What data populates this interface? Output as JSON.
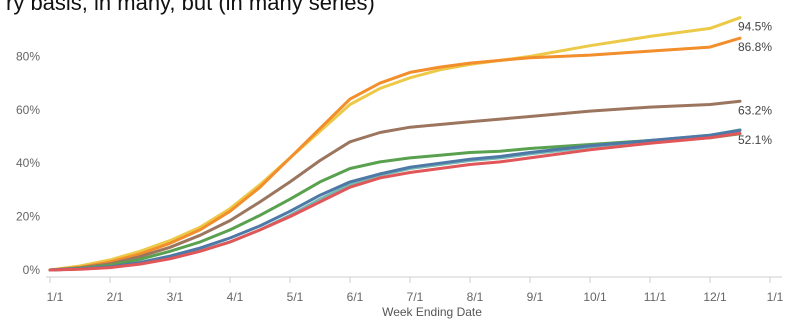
{
  "top_text": "ry basis, in many, but (in many series)",
  "chart_data": {
    "type": "line",
    "title": "",
    "xlabel": "Week Ending Date",
    "ylabel": "",
    "x_ticks": [
      "1/1",
      "2/1",
      "3/1",
      "4/1",
      "5/1",
      "6/1",
      "7/1",
      "8/1",
      "9/1",
      "10/1",
      "11/1",
      "12/1",
      "1/1"
    ],
    "x_domain": [
      0,
      12
    ],
    "ylim": [
      0,
      100
    ],
    "y_ticks": [
      {
        "value": 0,
        "label": "0%"
      },
      {
        "value": 20,
        "label": "20%"
      },
      {
        "value": 40,
        "label": "40%"
      },
      {
        "value": 60,
        "label": "60%"
      },
      {
        "value": 80,
        "label": "80%"
      }
    ],
    "grid": false,
    "end_labels": [
      {
        "text": "94.5%",
        "value": 94.5,
        "color": "#333333"
      },
      {
        "text": "86.8%",
        "value": 86.8,
        "color": "#333333"
      },
      {
        "text": "63.2%",
        "value": 63.2,
        "color": "#333333"
      },
      {
        "text": "52.1%",
        "value": 52.1,
        "color": "#333333"
      }
    ],
    "x": [
      0,
      0.5,
      1,
      1.5,
      2,
      2.5,
      3,
      3.5,
      4,
      4.5,
      5,
      5.5,
      6,
      6.5,
      7,
      7.5,
      8,
      9,
      10,
      11,
      11.5
    ],
    "series": [
      {
        "color": "#edc948",
        "values": [
          0,
          1.5,
          3.8,
          7,
          11,
          16,
          23,
          32,
          42,
          52,
          62,
          68,
          72,
          75,
          77,
          78.5,
          80,
          84,
          87.5,
          90.5,
          94.5
        ]
      },
      {
        "color": "#f28e2b",
        "values": [
          0,
          1,
          3,
          6,
          10,
          15,
          22,
          31,
          42,
          53,
          64,
          70,
          74,
          76,
          77.5,
          78.5,
          79.5,
          80.5,
          82,
          83.5,
          86.8
        ]
      },
      {
        "color": "#9c755f",
        "values": [
          0,
          0.8,
          2.3,
          5,
          8.5,
          13,
          18.5,
          25.5,
          33,
          41,
          48,
          51.5,
          53.5,
          54.5,
          55.5,
          56.5,
          57.5,
          59.5,
          61,
          62,
          63.2
        ]
      },
      {
        "color": "#59a14f",
        "values": [
          0,
          0.6,
          1.8,
          4,
          7,
          10.5,
          15,
          20.5,
          26.5,
          33,
          38,
          40.5,
          42,
          43,
          44,
          44.5,
          45.5,
          47,
          48.5,
          49.5,
          51
        ]
      },
      {
        "color": "#76b7b2",
        "values": [
          0,
          0.4,
          1.2,
          2.6,
          4.6,
          7.2,
          10.5,
          15,
          20.5,
          26.5,
          32,
          35.5,
          38,
          39.5,
          41,
          42,
          43.5,
          46,
          48.5,
          50.5,
          52.5
        ]
      },
      {
        "color": "#4e79a7",
        "values": [
          0,
          0.4,
          1.2,
          2.8,
          5.2,
          8.2,
          12,
          16.5,
          22,
          28,
          33,
          36,
          38.5,
          40,
          41.5,
          42.5,
          44,
          46.5,
          48.5,
          50.5,
          52.3
        ]
      },
      {
        "color": "#e15759",
        "values": [
          0,
          0.3,
          0.9,
          2.2,
          4.2,
          7,
          10.5,
          15,
          20,
          25.5,
          31,
          34.5,
          36.5,
          38,
          39.5,
          40.5,
          42,
          45,
          47.5,
          49.5,
          51.2
        ]
      }
    ]
  }
}
